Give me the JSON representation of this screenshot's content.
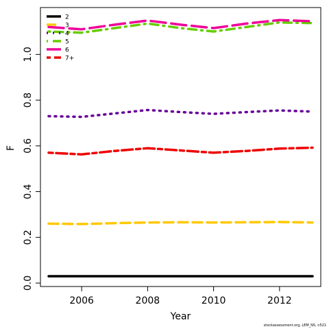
{
  "chart_data": {
    "type": "line",
    "title": "",
    "xlabel": "Year",
    "ylabel": "F",
    "xlim": [
      2004.75,
      2013.25
    ],
    "ylim": [
      -0.015,
      1.205
    ],
    "x_ticks": [
      2006,
      2008,
      2010,
      2012
    ],
    "y_ticks": [
      0.0,
      0.2,
      0.4,
      0.6,
      0.8,
      1.0
    ],
    "y_tick_labels": [
      "0.0",
      "0.2",
      "0.4",
      "0.6",
      "0.8",
      "1.0"
    ],
    "legend_position": "top-left",
    "grid": false,
    "x": [
      2005,
      2006,
      2007,
      2008,
      2009,
      2010,
      2011,
      2012,
      2013
    ],
    "series": [
      {
        "name": "2",
        "color": "#000000",
        "dash": "solid",
        "values": [
          0.03,
          0.03,
          0.03,
          0.03,
          0.03,
          0.03,
          0.03,
          0.03,
          0.03
        ]
      },
      {
        "name": "3",
        "color": "#FFC800",
        "dash": "dashed",
        "values": [
          0.26,
          0.258,
          0.262,
          0.265,
          0.266,
          0.265,
          0.266,
          0.267,
          0.265
        ]
      },
      {
        "name": "4",
        "color": "#660099",
        "dash": "dotted",
        "values": [
          0.73,
          0.727,
          0.742,
          0.757,
          0.748,
          0.74,
          0.748,
          0.755,
          0.75
        ]
      },
      {
        "name": "5",
        "color": "#66CC00",
        "dash": "dotdash",
        "values": [
          1.1,
          1.095,
          1.115,
          1.135,
          1.115,
          1.1,
          1.12,
          1.14,
          1.137
        ]
      },
      {
        "name": "6",
        "color": "#EE0099",
        "dash": "longdash",
        "values": [
          1.12,
          1.11,
          1.13,
          1.148,
          1.13,
          1.115,
          1.135,
          1.15,
          1.145
        ]
      },
      {
        "name": "7+",
        "color": "#EE0000",
        "dash": "twodash",
        "values": [
          0.57,
          0.563,
          0.578,
          0.59,
          0.58,
          0.57,
          0.578,
          0.588,
          0.592
        ]
      }
    ]
  },
  "credit": "stockassessment.org, LEM_NS, n521"
}
